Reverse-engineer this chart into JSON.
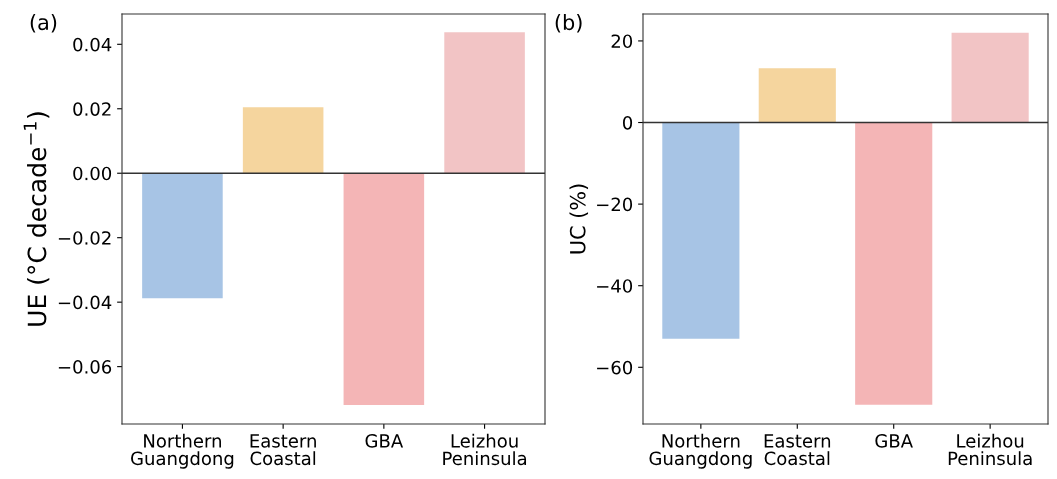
{
  "chart_data": [
    {
      "type": "bar",
      "annotations": [
        "(a)"
      ],
      "ylabel": "UE (°C decade$^{−1}$)",
      "categories": [
        "Northern\nGuangdong",
        "Eastern\nCoastal",
        "GBA",
        "Leizhou\nPeninsula"
      ],
      "values": [
        -0.0388,
        0.0205,
        -0.0719,
        0.0437
      ],
      "colors": [
        "#a7c4e5",
        "#f5d59e",
        "#f4b5b6",
        "#f2c4c5"
      ],
      "ylim": [
        -0.0778,
        0.0494
      ],
      "yticks": [
        {
          "value": -0.06,
          "label": "−0.06"
        },
        {
          "value": -0.04,
          "label": "−0.04"
        },
        {
          "value": -0.02,
          "label": "−0.02"
        },
        {
          "value": 0,
          "label": "0.00"
        },
        {
          "value": 0.02,
          "label": "0.02"
        },
        {
          "value": 0.04,
          "label": "0.04"
        }
      ],
      "ref_lines": [
        {
          "axis": "y",
          "value": 0,
          "color": "#333333"
        }
      ],
      "grid": false,
      "legend": false
    },
    {
      "type": "bar",
      "annotations": [
        "(b)"
      ],
      "ylabel": "UC (%)",
      "categories": [
        "Northern\nGuangdong",
        "Eastern\nCoastal",
        "GBA",
        "Leizhou\nPeninsula"
      ],
      "values": [
        -53.0,
        13.3,
        -69.2,
        22.0
      ],
      "colors": [
        "#a7c4e5",
        "#f5d59e",
        "#f4b5b6",
        "#f2c4c5"
      ],
      "ylim": [
        -73.9,
        26.6
      ],
      "yticks": [
        {
          "value": -60,
          "label": "−60"
        },
        {
          "value": -40,
          "label": "−40"
        },
        {
          "value": -20,
          "label": "−20"
        },
        0,
        20
      ],
      "ref_lines": [
        {
          "axis": "y",
          "value": 0,
          "color": "#333333"
        }
      ],
      "grid": false,
      "legend": false
    }
  ]
}
